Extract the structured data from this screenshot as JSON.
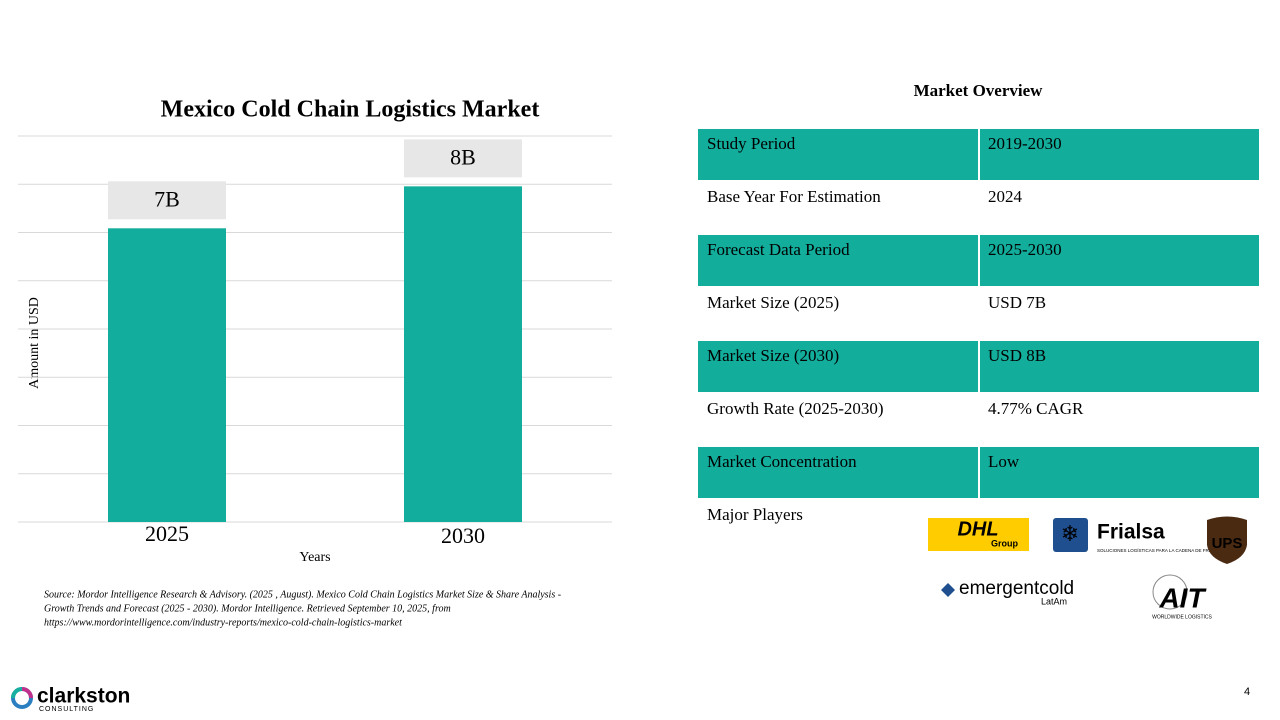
{
  "chart_data": {
    "type": "bar",
    "title": "Mexico Cold Chain Logistics Market",
    "x_label": "Years",
    "y_label": "Amount in USD",
    "categories": [
      "2025",
      "2030"
    ],
    "values": [
      7,
      8
    ],
    "value_labels": [
      "7B",
      "8B"
    ],
    "color": "#12ad9c",
    "ylim": [
      0,
      9.2
    ],
    "yticks": [
      0,
      1.15,
      2.3,
      3.45,
      4.6,
      5.75,
      6.9,
      8.05,
      9.2
    ],
    "grid": true
  },
  "source": [
    "Source: Mordor Intelligence Research & Advisory. (2025 , August). Mexico Cold Chain Logistics Market Size & Share Analysis -",
    "Growth Trends and Forecast (2025 - 2030). Mordor Intelligence. Retrieved September 10, 2025, from",
    "https://www.mordorintelligence.com/industry-reports/mexico-cold-chain-logistics-market"
  ],
  "table": {
    "title": "Market Overview",
    "rows": [
      [
        "Study Period",
        "2019-2030"
      ],
      [
        "Base Year For Estimation",
        "2024"
      ],
      [
        "Forecast Data Period",
        "2025-2030"
      ],
      [
        "Market Size (2025)",
        "USD 7B"
      ],
      [
        "Market Size (2030)",
        "USD 8B"
      ],
      [
        "Growth Rate (2025-2030)",
        "4.77% CAGR"
      ],
      [
        "Market Concentration",
        "Low"
      ],
      [
        "Major Players"
      ]
    ]
  },
  "major_players": [
    {
      "name": "DHL",
      "tagline": "Group"
    },
    {
      "name": "Frialsa",
      "tagline": "SOLUCIONES LOGÍSTICAS PARA LA CADENA DE FRÍO"
    },
    {
      "name": "UPS"
    },
    {
      "name": "emergentcold",
      "tagline": "LatAm"
    },
    {
      "name": "AIT",
      "tagline": "WORLDWIDE LOGISTICS"
    }
  ],
  "footer": {
    "brand": "clarkston",
    "sub": "CONSULTING",
    "page": "4"
  }
}
